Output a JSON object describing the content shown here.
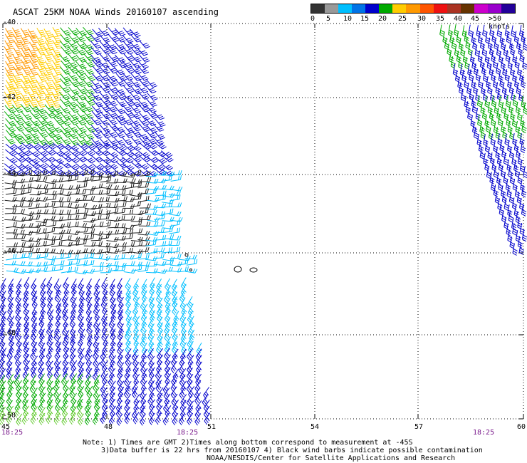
{
  "title": "ASCAT 25KM NOAA Winds 20160107 ascending",
  "legend": {
    "colors": [
      "#333333",
      "#999999",
      "#00bfff",
      "#0073e6",
      "#0000cc",
      "#00aa00",
      "#ffcc00",
      "#ff9900",
      "#ff5500",
      "#ee1111",
      "#aa3322",
      "#663300",
      "#cc00cc",
      "#9900cc",
      "#220099"
    ],
    "labels": [
      "0",
      "5",
      "10",
      "15",
      "20",
      "25",
      "30",
      "35",
      "40",
      "45",
      ">50 knots"
    ]
  },
  "lat_labels": [
    "-40",
    "-42",
    "-44",
    "-46",
    "-48",
    "-50"
  ],
  "lon_labels": [
    "45",
    "48",
    "51",
    "54",
    "57",
    "60"
  ],
  "times": [
    "18:25",
    "18:25",
    "18:25"
  ],
  "notes": {
    "line1": "Note: 1) Times are GMT 2)Times along bottom correspond to measurement at -45S",
    "line2": "3)Data buffer is 22 hrs from 20160107 4) Black wind barbs indicate possible contamination",
    "line3": "NOAA/NESDIS/Center for Satellite Applications and Research"
  }
}
